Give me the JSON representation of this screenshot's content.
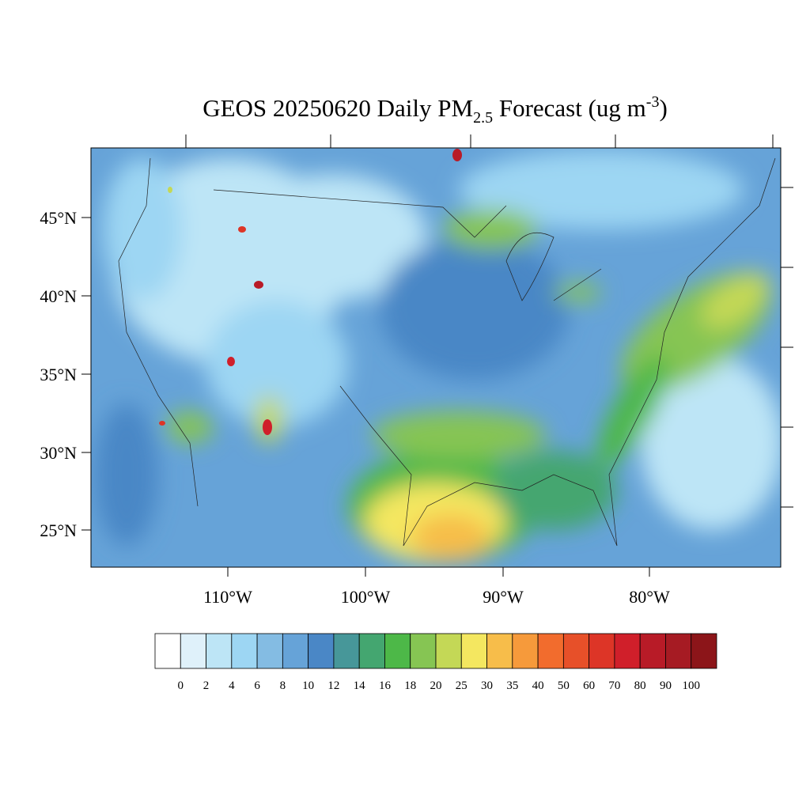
{
  "header": {
    "title_parts": [
      "GEOS 20250620 Daily PM",
      "2.5",
      " Forecast (ug m",
      "-3",
      ")"
    ]
  },
  "map": {
    "lat_labels": [
      "45°N",
      "40°N",
      "35°N",
      "30°N",
      "25°N"
    ],
    "lon_labels": [
      "110°W",
      "100°W",
      "90°W",
      "80°W"
    ]
  },
  "colorbar": {
    "levels": [
      0,
      2,
      4,
      6,
      8,
      10,
      12,
      14,
      16,
      18,
      20,
      25,
      30,
      35,
      40,
      50,
      60,
      70,
      80,
      90,
      100
    ],
    "colors": [
      "#ffffff",
      "#dff1fa",
      "#bde5f6",
      "#9dd6f3",
      "#84bce3",
      "#66a3d8",
      "#4a87c6",
      "#479799",
      "#44a670",
      "#4db848",
      "#86c553",
      "#c4d856",
      "#f4e760",
      "#f7bd4a",
      "#f69a3b",
      "#f26c2d",
      "#e75029",
      "#dd3527",
      "#d01f2a",
      "#b81b27",
      "#a61b23",
      "#8c1519"
    ]
  }
}
